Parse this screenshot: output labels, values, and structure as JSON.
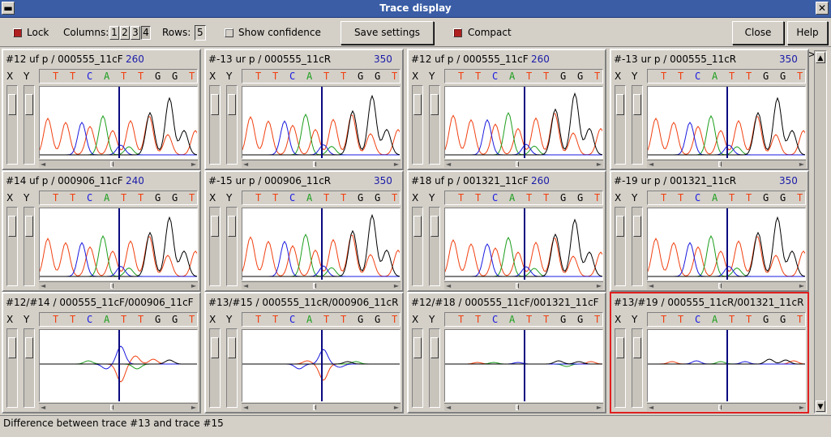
{
  "window": {
    "title": "Trace display",
    "menu_icon": "window-menu-icon",
    "close_icon": "close-icon",
    "close_glyph": "✕"
  },
  "toolbar": {
    "lock_label": "Lock",
    "lock_checked": true,
    "columns_label": "Columns:",
    "columns_options": [
      "1",
      "2",
      "3",
      "4"
    ],
    "columns_selected": "4",
    "rows_label": "Rows:",
    "rows_value": "5",
    "show_confidence_label": "Show confidence",
    "show_confidence_checked": false,
    "save_settings_label": "Save settings",
    "compact_label": "Compact",
    "compact_checked": true,
    "close_label": "Close",
    "help_label": "Help >>"
  },
  "panel_common": {
    "x_label": "X",
    "y_label": "Y",
    "left_arrow": "◄",
    "right_arrow": "►"
  },
  "colors": {
    "A": "#1d9e1d",
    "C": "#1a1ae0",
    "G": "#000000",
    "T": "#f04010",
    "cursor": "#0a0a80",
    "selected_border": "#e02020"
  },
  "panels": [
    {
      "title": "#12 uf p / 000555_11cF",
      "pos": "260",
      "bases": "TTCATTGGT",
      "partial": ""
    },
    {
      "title": "#-13 ur p / 000555_11cR",
      "pos": "350",
      "bases": "TTCATTGGT",
      "partial": "A"
    },
    {
      "title": "#12 uf p / 000555_11cF",
      "pos": "260",
      "bases": "TTCATTGGT",
      "partial": ""
    },
    {
      "title": "#-13 ur p / 000555_11cR",
      "pos": "350",
      "bases": "TTCATTGGT",
      "partial": "A"
    },
    {
      "title": "#14 uf p / 000906_11cF",
      "pos": "240",
      "bases": "TTCATTGGT",
      "partial": "A"
    },
    {
      "title": "#-15 ur p / 000906_11cR",
      "pos": "350",
      "bases": "TTCATTGGT",
      "partial": "A"
    },
    {
      "title": "#18 uf p / 001321_11cF",
      "pos": "260",
      "bases": "TTCATTGGT",
      "partial": "A"
    },
    {
      "title": "#-19 ur p / 001321_11cR",
      "pos": "350",
      "bases": "TTCATTGGT",
      "partial": ""
    },
    {
      "title": "#12/#14 / 000555_11cF/000906_11cF",
      "pos": "",
      "bases": "TTCATTGGT",
      "partial": ""
    },
    {
      "title": "#13/#15 / 000555_11cR/000906_11cR",
      "pos": "",
      "bases": "TTCATTGGT",
      "partial": ""
    },
    {
      "title": "#12/#18 / 000555_11cF/001321_11cF",
      "pos": "",
      "bases": "TTCATTGGT",
      "partial": ""
    },
    {
      "title": "#13/#19 / 000555_11cR/001321_11cR",
      "pos": "",
      "bases": "TTCATTGGT",
      "partial": "",
      "selected": true
    }
  ],
  "scrollbar": {
    "up_arrow": "▲",
    "down_arrow": "▼"
  },
  "status": {
    "text": "Difference between trace #13 and trace #15"
  }
}
